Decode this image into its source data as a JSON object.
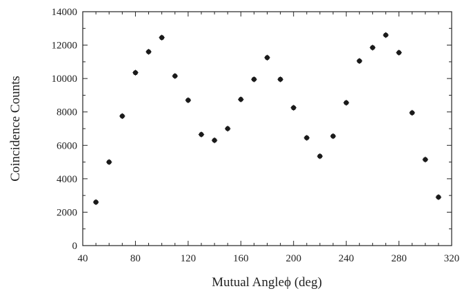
{
  "chart_data": {
    "type": "scatter",
    "xlabel": "Mutual Angleϕ (deg)",
    "ylabel": "Coincidence Counts",
    "xlim": [
      40,
      320
    ],
    "ylim": [
      0,
      14000
    ],
    "xticks": [
      40,
      80,
      120,
      160,
      200,
      240,
      280,
      320
    ],
    "yticks": [
      0,
      2000,
      4000,
      6000,
      8000,
      10000,
      12000,
      14000
    ],
    "marker_color": "#1a1a1a",
    "grid": false,
    "series": [
      {
        "x": [
          50,
          60,
          70,
          80,
          90,
          100,
          110,
          120,
          130,
          140,
          150,
          160,
          170,
          180,
          190,
          200,
          210,
          220,
          230,
          240,
          250,
          260,
          270,
          280,
          290,
          300,
          310
        ],
        "y": [
          2600,
          5000,
          7750,
          10350,
          11600,
          12450,
          10150,
          8700,
          6650,
          6300,
          7000,
          8750,
          9950,
          11250,
          9950,
          8250,
          6450,
          5350,
          6550,
          8550,
          11050,
          11850,
          12600,
          11550,
          7950,
          5150,
          2900
        ]
      }
    ]
  }
}
